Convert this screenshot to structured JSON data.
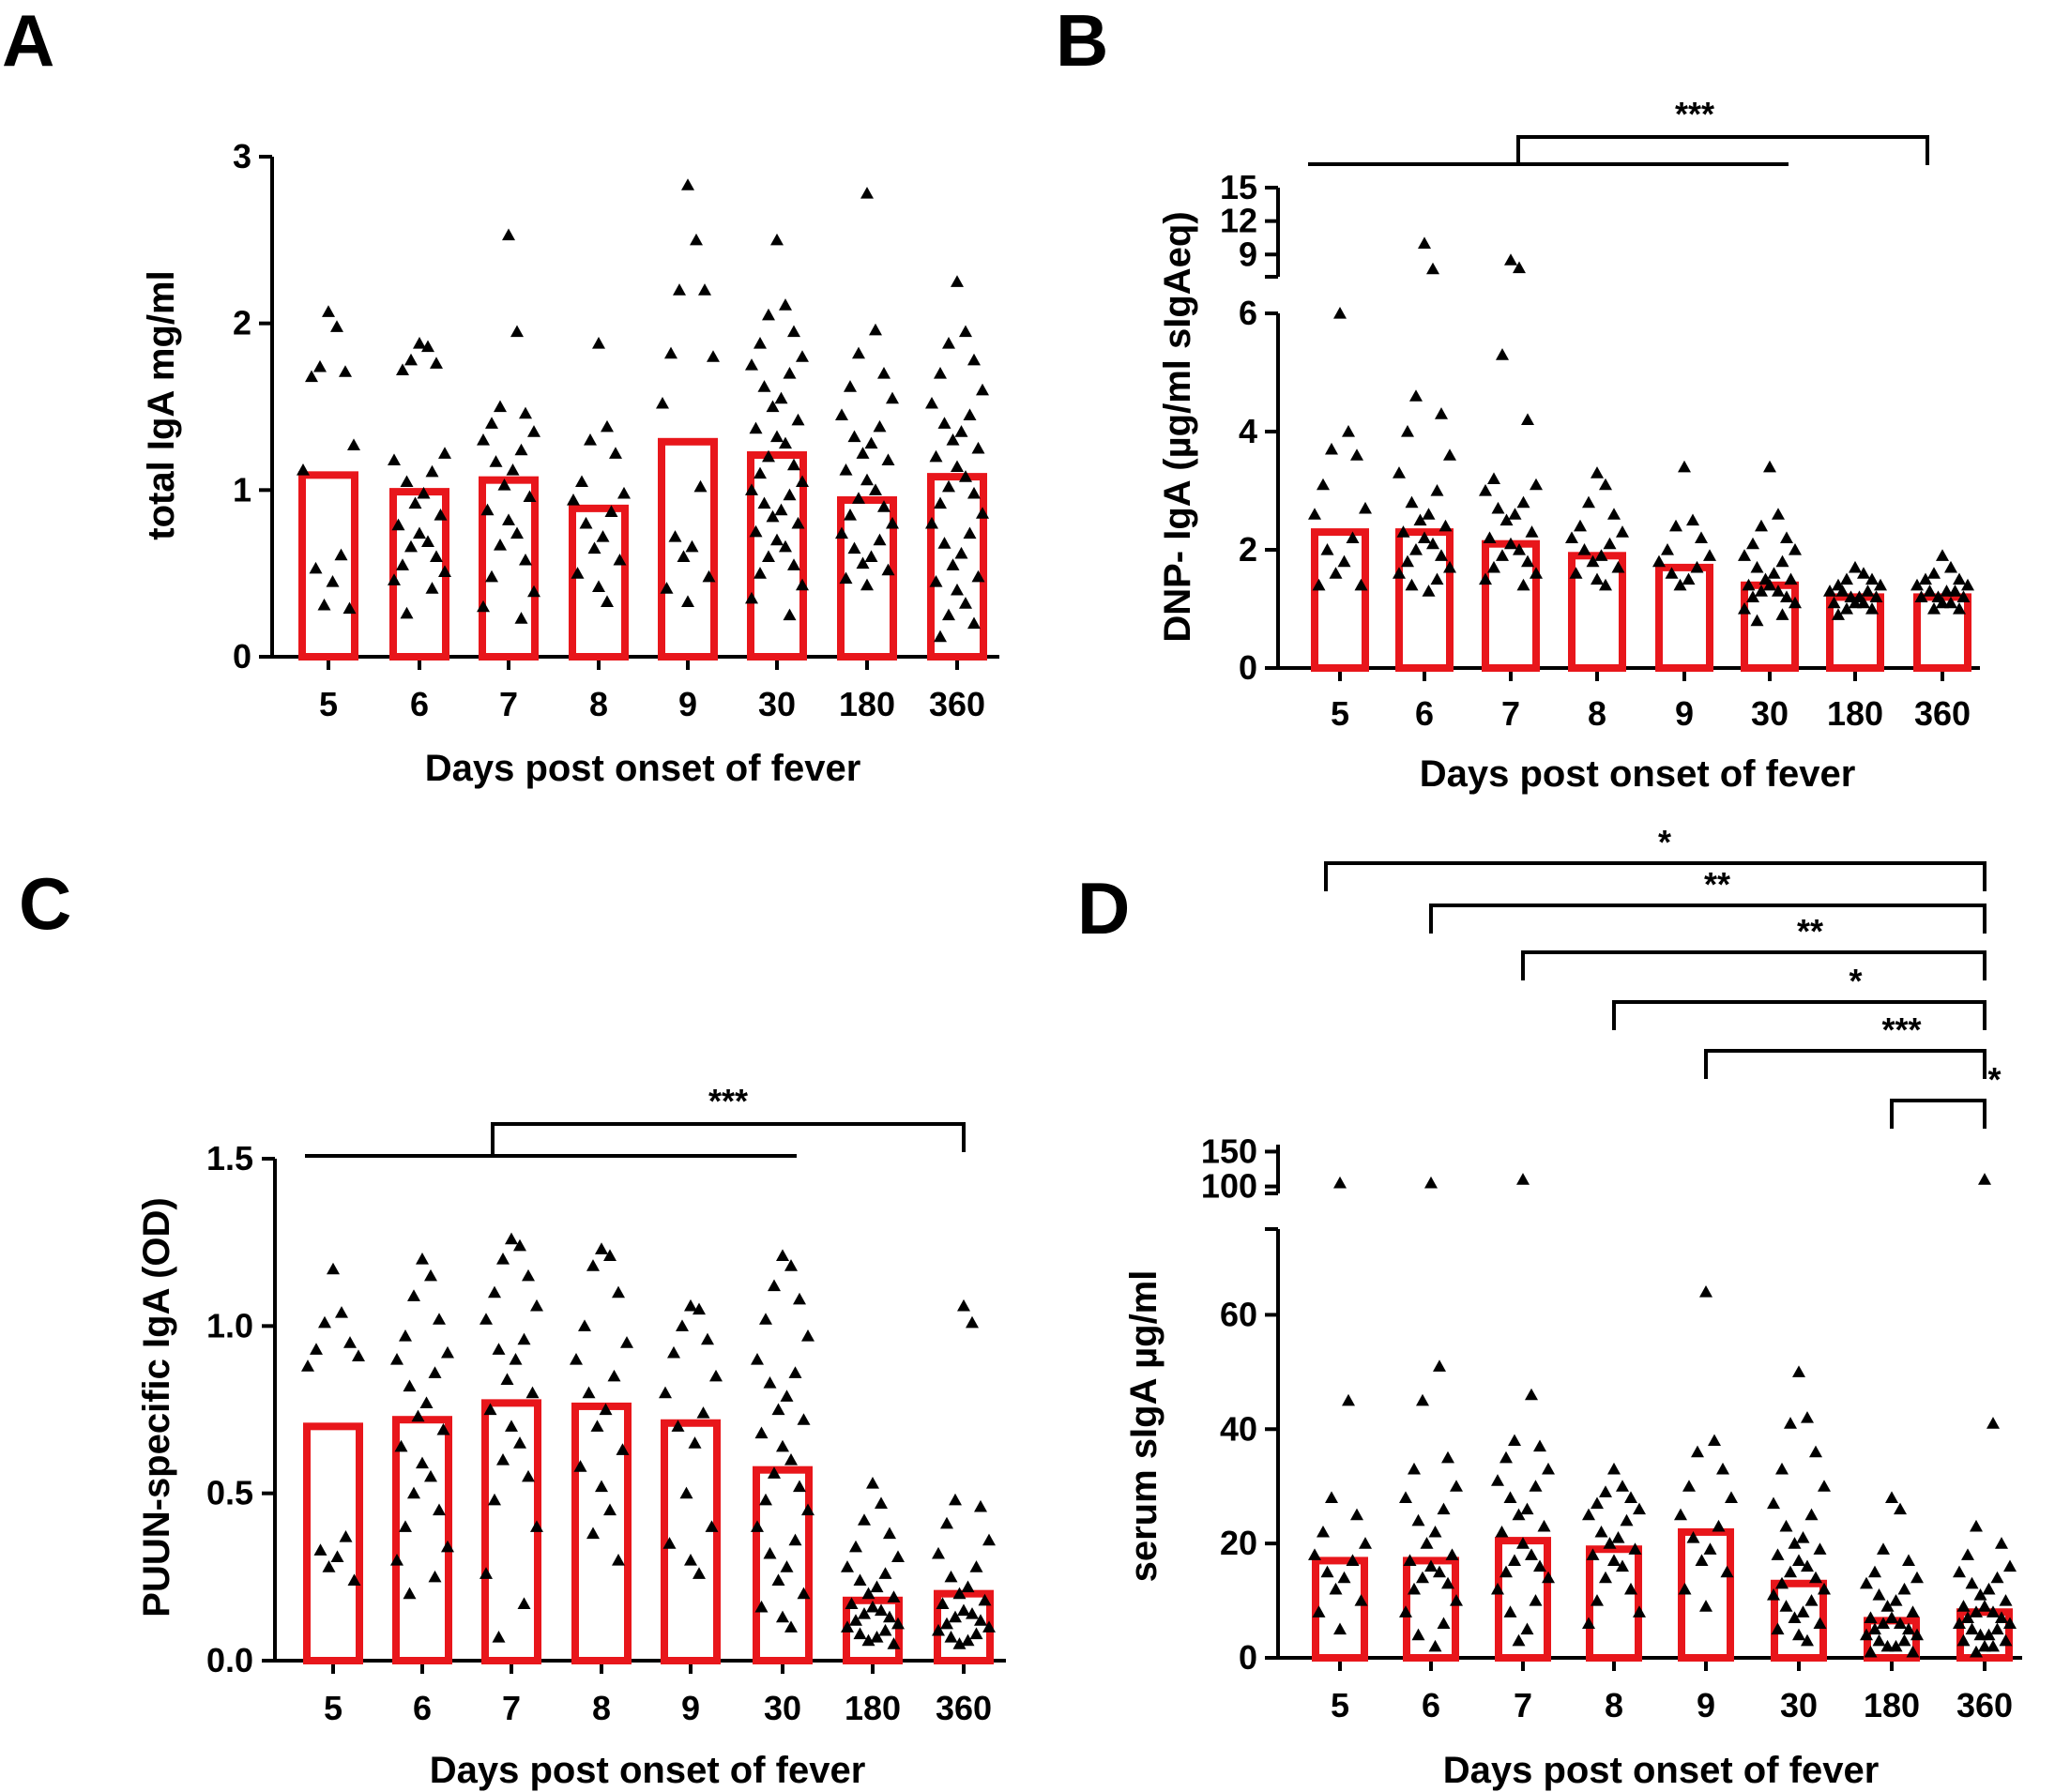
{
  "figure": {
    "panels": [
      "A",
      "B",
      "C",
      "D"
    ],
    "bar_color": "#e8161b",
    "point_color": "#000000"
  },
  "chart_data": [
    {
      "panel": "A",
      "type": "bar",
      "overlay": "scatter-triangles",
      "categories": [
        "5",
        "6",
        "7",
        "8",
        "9",
        "30",
        "180",
        "360"
      ],
      "values": [
        1.09,
        0.99,
        1.06,
        0.89,
        1.29,
        1.21,
        0.94,
        1.08
      ],
      "points": [
        [
          2.07,
          1.98,
          1.74,
          1.71,
          1.68,
          1.27,
          1.12,
          0.61,
          0.53,
          0.45,
          0.31,
          0.29
        ],
        [
          1.88,
          1.86,
          1.78,
          1.76,
          1.72,
          1.22,
          1.18,
          1.11,
          1.05,
          0.98,
          0.92,
          0.85,
          0.79,
          0.74,
          0.69,
          0.66,
          0.6,
          0.55,
          0.51,
          0.46,
          0.41,
          0.26
        ],
        [
          2.53,
          1.95,
          1.5,
          1.46,
          1.4,
          1.35,
          1.3,
          1.24,
          1.17,
          1.12,
          1.03,
          0.96,
          0.88,
          0.82,
          0.74,
          0.67,
          0.58,
          0.48,
          0.39,
          0.3,
          0.23
        ],
        [
          1.88,
          1.38,
          1.3,
          1.22,
          1.05,
          0.98,
          0.94,
          0.87,
          0.8,
          0.72,
          0.65,
          0.58,
          0.5,
          0.42,
          0.33
        ],
        [
          2.83,
          2.5,
          2.2,
          2.2,
          1.82,
          1.8,
          1.52,
          1.02,
          0.72,
          0.66,
          0.6,
          0.48,
          0.41,
          0.33
        ],
        [
          2.5,
          2.11,
          2.05,
          1.95,
          1.88,
          1.8,
          1.75,
          1.7,
          1.62,
          1.55,
          1.5,
          1.42,
          1.37,
          1.32,
          1.28,
          1.2,
          1.15,
          1.1,
          1.05,
          1.0,
          0.97,
          0.92,
          0.88,
          0.84,
          0.8,
          0.75,
          0.7,
          0.66,
          0.6,
          0.55,
          0.5,
          0.43,
          0.35,
          0.25
        ],
        [
          2.78,
          1.96,
          1.82,
          1.7,
          1.62,
          1.55,
          1.45,
          1.38,
          1.32,
          1.28,
          1.22,
          1.18,
          1.12,
          1.06,
          1.0,
          0.95,
          0.9,
          0.85,
          0.8,
          0.74,
          0.7,
          0.65,
          0.6,
          0.56,
          0.52,
          0.47,
          0.43
        ],
        [
          2.25,
          1.95,
          1.88,
          1.78,
          1.7,
          1.6,
          1.52,
          1.45,
          1.4,
          1.35,
          1.3,
          1.25,
          1.2,
          1.14,
          1.08,
          1.02,
          0.98,
          0.92,
          0.86,
          0.8,
          0.74,
          0.68,
          0.62,
          0.55,
          0.48,
          0.45,
          0.4,
          0.32,
          0.25,
          0.2,
          0.12
        ]
      ],
      "xlabel": "Days post onset of fever",
      "ylabel": "total IgA mg/ml",
      "yticks": [
        "0",
        "1",
        "2",
        "3"
      ],
      "ylim": [
        0,
        3
      ],
      "significance": []
    },
    {
      "panel": "B",
      "type": "bar",
      "overlay": "scatter-triangles",
      "categories": [
        "5",
        "6",
        "7",
        "8",
        "9",
        "30",
        "180",
        "360"
      ],
      "values": [
        2.3,
        2.3,
        2.1,
        1.9,
        1.7,
        1.4,
        1.2,
        1.2
      ],
      "points": [
        [
          6.0,
          4.0,
          3.7,
          3.6,
          3.1,
          2.7,
          2.6,
          2.2,
          2.0,
          1.8,
          1.6,
          1.4,
          1.4
        ],
        [
          10.0,
          7.7,
          4.6,
          4.3,
          4.0,
          3.6,
          3.3,
          3.0,
          2.8,
          2.6,
          2.5,
          2.4,
          2.3,
          2.2,
          2.1,
          2.0,
          1.9,
          1.8,
          1.7,
          1.6,
          1.5,
          1.4,
          1.3
        ],
        [
          8.5,
          7.8,
          5.3,
          4.2,
          3.2,
          3.1,
          3.0,
          2.8,
          2.7,
          2.6,
          2.5,
          2.3,
          2.2,
          2.1,
          2.0,
          1.9,
          1.8,
          1.7,
          1.6,
          1.5,
          1.4
        ],
        [
          3.3,
          3.1,
          2.8,
          2.6,
          2.4,
          2.3,
          2.2,
          2.1,
          2.0,
          1.9,
          1.8,
          1.7,
          1.6,
          1.5,
          1.4
        ],
        [
          3.4,
          2.5,
          2.4,
          2.2,
          2.0,
          1.9,
          1.8,
          1.7,
          1.6,
          1.5,
          1.4
        ],
        [
          3.4,
          2.6,
          2.4,
          2.2,
          2.1,
          2.0,
          1.9,
          1.8,
          1.7,
          1.6,
          1.5,
          1.5,
          1.4,
          1.4,
          1.3,
          1.3,
          1.2,
          1.2,
          1.1,
          1.0,
          0.9,
          0.8
        ],
        [
          1.7,
          1.6,
          1.5,
          1.5,
          1.4,
          1.4,
          1.3,
          1.3,
          1.3,
          1.2,
          1.2,
          1.2,
          1.1,
          1.1,
          1.1,
          1.0,
          1.0,
          0.9
        ],
        [
          1.9,
          1.7,
          1.6,
          1.5,
          1.5,
          1.4,
          1.4,
          1.3,
          1.3,
          1.3,
          1.2,
          1.2,
          1.2,
          1.1,
          1.1,
          1.0,
          1.0
        ]
      ],
      "xlabel": "Days post onset of fever",
      "ylabel": "DNP- IgA (µg/ml sIgAeq)",
      "yticks_lower": [
        "0",
        "2",
        "4",
        "6"
      ],
      "yticks_upper": [
        "9",
        "12",
        "15"
      ],
      "ylim_lower": [
        0,
        6
      ],
      "ylim_upper": [
        7,
        15
      ],
      "significance": [
        {
          "label": "***",
          "from_group": [
            "5",
            "6",
            "7",
            "8",
            "9",
            "30"
          ],
          "to": "360"
        }
      ]
    },
    {
      "panel": "C",
      "type": "bar",
      "overlay": "scatter-triangles",
      "categories": [
        "5",
        "6",
        "7",
        "8",
        "9",
        "30",
        "180",
        "360"
      ],
      "values": [
        0.7,
        0.72,
        0.77,
        0.76,
        0.71,
        0.57,
        0.18,
        0.2
      ],
      "points": [
        [
          1.17,
          1.04,
          1.01,
          0.95,
          0.93,
          0.91,
          0.88,
          0.37,
          0.33,
          0.31,
          0.28,
          0.24
        ],
        [
          1.2,
          1.15,
          1.09,
          1.02,
          0.97,
          0.92,
          0.9,
          0.86,
          0.82,
          0.77,
          0.73,
          0.69,
          0.64,
          0.59,
          0.55,
          0.5,
          0.45,
          0.4,
          0.34,
          0.3,
          0.25,
          0.2
        ],
        [
          1.26,
          1.24,
          1.2,
          1.15,
          1.1,
          1.06,
          1.02,
          0.96,
          0.93,
          0.9,
          0.84,
          0.8,
          0.75,
          0.7,
          0.65,
          0.6,
          0.55,
          0.48,
          0.4,
          0.26,
          0.17,
          0.07
        ],
        [
          1.23,
          1.21,
          1.18,
          1.1,
          1.0,
          0.95,
          0.9,
          0.85,
          0.8,
          0.75,
          0.7,
          0.63,
          0.58,
          0.52,
          0.45,
          0.38,
          0.3
        ],
        [
          1.06,
          1.05,
          1.0,
          0.96,
          0.92,
          0.85,
          0.8,
          0.74,
          0.7,
          0.65,
          0.5,
          0.4,
          0.35,
          0.3,
          0.26
        ],
        [
          1.21,
          1.18,
          1.12,
          1.08,
          1.02,
          0.97,
          0.9,
          0.86,
          0.83,
          0.79,
          0.75,
          0.72,
          0.68,
          0.64,
          0.6,
          0.56,
          0.52,
          0.48,
          0.45,
          0.4,
          0.36,
          0.32,
          0.28,
          0.24,
          0.2,
          0.16,
          0.13,
          0.1
        ],
        [
          0.53,
          0.47,
          0.42,
          0.38,
          0.34,
          0.31,
          0.28,
          0.26,
          0.24,
          0.22,
          0.2,
          0.19,
          0.17,
          0.16,
          0.15,
          0.14,
          0.13,
          0.12,
          0.11,
          0.1,
          0.09,
          0.08,
          0.07,
          0.06,
          0.05
        ],
        [
          1.06,
          1.01,
          0.48,
          0.46,
          0.41,
          0.36,
          0.32,
          0.28,
          0.25,
          0.22,
          0.2,
          0.18,
          0.17,
          0.15,
          0.14,
          0.13,
          0.12,
          0.11,
          0.1,
          0.09,
          0.08,
          0.07,
          0.06,
          0.05
        ]
      ],
      "xlabel": "Days post onset of fever",
      "ylabel": "PUUN-specific IgA (OD)",
      "yticks": [
        "0.0",
        "0.5",
        "1.0",
        "1.5"
      ],
      "ylim": [
        0,
        1.5
      ],
      "significance": [
        {
          "label": "***",
          "from_group": [
            "5",
            "6",
            "7",
            "8",
            "9",
            "30"
          ],
          "to": "360"
        }
      ]
    },
    {
      "panel": "D",
      "type": "bar",
      "overlay": "scatter-triangles",
      "categories": [
        "5",
        "6",
        "7",
        "8",
        "9",
        "30",
        "180",
        "360"
      ],
      "values": [
        17,
        17,
        20.5,
        19,
        22,
        13,
        6.5,
        8
      ],
      "points": [
        [
          105,
          45,
          28,
          25,
          22,
          20,
          18,
          17,
          15,
          14,
          12,
          10,
          8,
          5
        ],
        [
          105,
          51,
          45,
          35,
          33,
          30,
          28,
          26,
          24,
          22,
          20,
          18,
          17,
          16,
          15,
          14,
          13,
          12,
          10,
          8,
          6,
          4,
          2
        ],
        [
          110,
          46,
          38,
          37,
          35,
          33,
          31,
          30,
          28,
          26,
          25,
          23,
          22,
          20,
          18,
          17,
          16,
          15,
          14,
          12,
          10,
          8,
          5,
          3
        ],
        [
          33,
          30,
          29,
          28,
          27,
          26,
          25,
          24,
          22,
          21,
          20,
          19,
          18,
          17,
          16,
          14,
          12,
          10,
          8,
          6
        ],
        [
          64,
          38,
          36,
          33,
          30,
          28,
          25,
          23,
          21,
          19,
          17,
          15,
          12,
          9
        ],
        [
          50,
          42,
          41,
          36,
          33,
          30,
          27,
          25,
          23,
          21,
          20,
          19,
          18,
          17,
          16,
          15,
          14,
          13,
          12,
          11,
          10,
          9,
          8,
          7,
          6,
          5,
          4,
          3
        ],
        [
          28,
          26,
          19,
          17,
          15,
          14,
          13,
          12,
          11,
          10,
          9,
          8,
          7,
          7,
          6,
          6,
          5,
          5,
          4,
          4,
          3,
          3,
          2,
          2,
          1,
          1
        ],
        [
          110,
          41,
          23,
          20,
          18,
          16,
          15,
          14,
          13,
          12,
          11,
          10,
          9,
          9,
          8,
          8,
          7,
          7,
          6,
          6,
          5,
          5,
          4,
          4,
          3,
          3,
          2,
          2,
          1
        ]
      ],
      "xlabel": "Days post onset of fever",
      "ylabel": "serum sIgA µg/ml",
      "yticks_lower": [
        "0",
        "20",
        "40",
        "60"
      ],
      "yticks_upper": [
        "100",
        "150"
      ],
      "ylim_lower": [
        0,
        75
      ],
      "ylim_upper": [
        90,
        160
      ],
      "significance": [
        {
          "label": "*",
          "from": "5",
          "to": "360"
        },
        {
          "label": "**",
          "from": "6",
          "to": "360"
        },
        {
          "label": "**",
          "from": "7",
          "to": "360"
        },
        {
          "label": "*",
          "from": "8",
          "to": "360"
        },
        {
          "label": "***",
          "from": "9",
          "to": "360"
        },
        {
          "label": "*",
          "from": "180",
          "to": "360"
        }
      ]
    }
  ]
}
